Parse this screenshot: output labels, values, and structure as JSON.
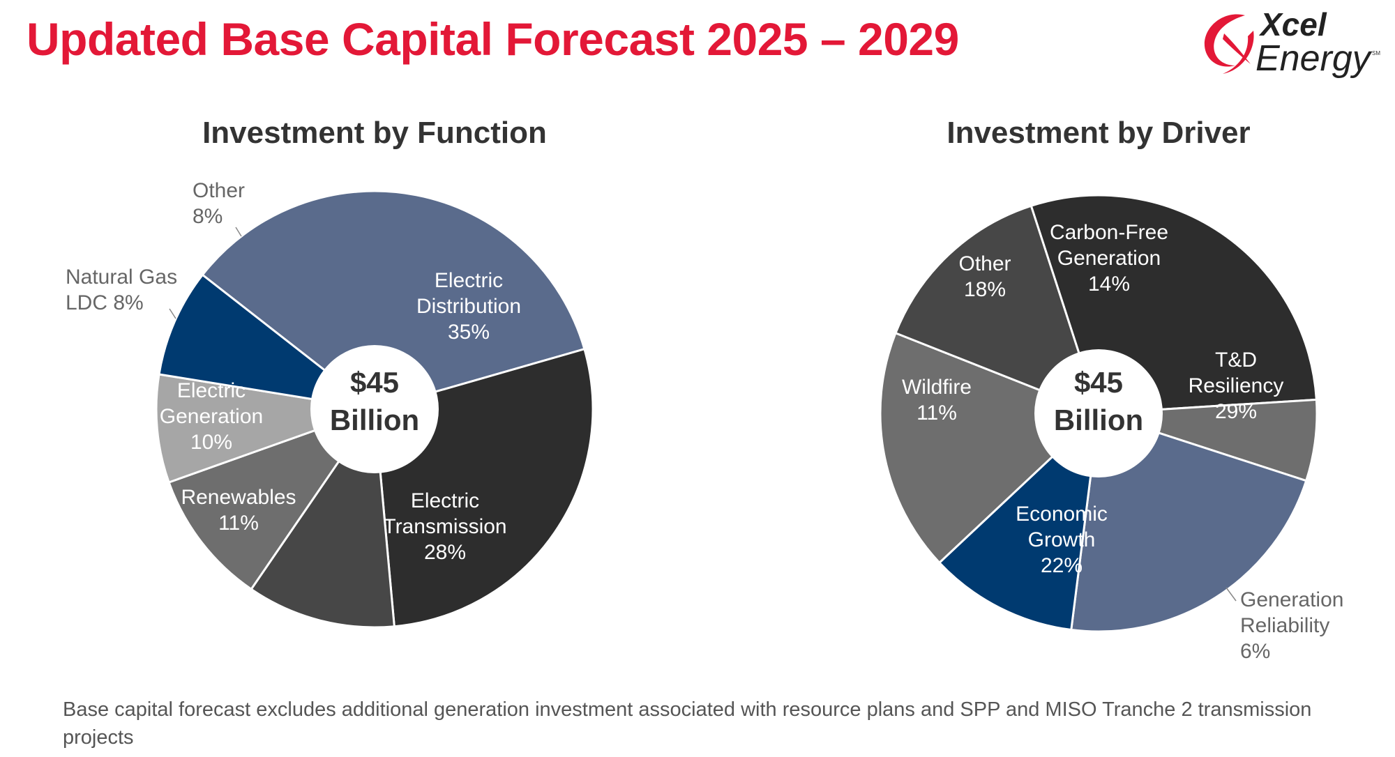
{
  "page": {
    "title": "Updated Base Capital Forecast 2025 – 2029",
    "footnote": "Base capital forecast excludes additional generation investment associated with resource plans and SPP and MISO Tranche 2 transmission projects"
  },
  "logo": {
    "line1": "Xcel",
    "line2": "Energy",
    "mark": "SM",
    "colors": {
      "swoosh": "#e31837",
      "text": "#222222"
    }
  },
  "colors": {
    "title": "#e31837",
    "navy": "#003a70",
    "slate": "#5a6b8c",
    "charcoal": "#2d2d2d",
    "dark_gray": "#474747",
    "mid_gray": "#6e6e6e",
    "light_gray": "#a6a6a6"
  },
  "chart_data": [
    {
      "type": "pie",
      "title": "Investment by Function",
      "center_label": [
        "$45",
        "Billion"
      ],
      "slices": [
        {
          "label": "Electric Distribution",
          "value": 35,
          "color": "#5a6b8c"
        },
        {
          "label": "Electric Transmission",
          "value": 28,
          "color": "#2d2d2d"
        },
        {
          "label": "Renewables",
          "value": 11,
          "color": "#474747"
        },
        {
          "label": "Electric Generation",
          "value": 10,
          "color": "#6e6e6e"
        },
        {
          "label": "Natural Gas LDC",
          "value": 8,
          "color": "#a6a6a6"
        },
        {
          "label": "Other",
          "value": 8,
          "color": "#003a70"
        }
      ],
      "labels": [
        {
          "lines": [
            "Electric",
            "Distribution",
            "35%"
          ],
          "color": "#ffffff"
        },
        {
          "lines": [
            "Electric",
            "Transmission",
            "28%"
          ],
          "color": "#ffffff"
        },
        {
          "lines": [
            "Renewables",
            "11%"
          ],
          "color": "#ffffff"
        },
        {
          "lines": [
            "Electric",
            "Generation",
            "10%"
          ],
          "color": "#ffffff"
        },
        {
          "lines": [
            "Natural Gas",
            "LDC 8%"
          ],
          "color": "#666666"
        },
        {
          "lines": [
            "Other",
            "8%"
          ],
          "color": "#666666"
        }
      ]
    },
    {
      "type": "pie",
      "title": "Investment by Driver",
      "center_label": [
        "$45",
        "Billion"
      ],
      "slices": [
        {
          "label": "T&D Resiliency",
          "value": 29,
          "color": "#2d2d2d"
        },
        {
          "label": "Generation Reliability",
          "value": 6,
          "color": "#6e6e6e"
        },
        {
          "label": "Economic Growth",
          "value": 22,
          "color": "#5a6b8c"
        },
        {
          "label": "Wildfire",
          "value": 11,
          "color": "#003a70"
        },
        {
          "label": "Other",
          "value": 18,
          "color": "#6e6e6e"
        },
        {
          "label": "Carbon-Free Generation",
          "value": 14,
          "color": "#474747"
        }
      ],
      "labels": [
        {
          "lines": [
            "T&D",
            "Resiliency",
            "29%"
          ],
          "color": "#ffffff"
        },
        {
          "lines": [
            "Generation",
            "Reliability",
            "6%"
          ],
          "color": "#666666"
        },
        {
          "lines": [
            "Economic",
            "Growth",
            "22%"
          ],
          "color": "#ffffff"
        },
        {
          "lines": [
            "Wildfire",
            "11%"
          ],
          "color": "#ffffff"
        },
        {
          "lines": [
            "Other",
            "18%"
          ],
          "color": "#ffffff"
        },
        {
          "lines": [
            "Carbon-Free",
            "Generation",
            "14%"
          ],
          "color": "#ffffff"
        }
      ]
    }
  ]
}
